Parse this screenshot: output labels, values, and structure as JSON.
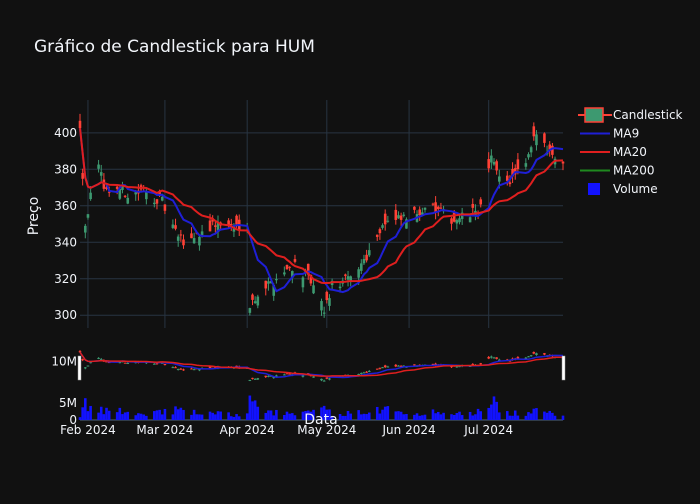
{
  "chart_data": {
    "type": "candlestick",
    "title": "Gráfico de Candlestick para HUM",
    "ylabel": "Preço",
    "xlabel": "Data",
    "ylim": [
      293,
      418
    ],
    "yticks": [
      300,
      320,
      340,
      360,
      380,
      400
    ],
    "volume_ylim": [
      0,
      8000000
    ],
    "volume_ticks": [
      {
        "value": 0,
        "label": "0"
      },
      {
        "value": 5000000,
        "label": "5M"
      }
    ],
    "navigator_tick": {
      "value": 370,
      "label": "10M"
    },
    "x_start": "2024-01-29",
    "x_end": "2024-07-29",
    "xticks": [
      {
        "date": "2024-02-01",
        "label": "Feb 2024"
      },
      {
        "date": "2024-03-01",
        "label": "Mar 2024"
      },
      {
        "date": "2024-04-01",
        "label": "Apr 2024"
      },
      {
        "date": "2024-05-01",
        "label": "May 2024"
      },
      {
        "date": "2024-06-01",
        "label": "Jun 2024"
      },
      {
        "date": "2024-07-01",
        "label": "Jul 2024"
      }
    ],
    "legend": {
      "position": "top-right",
      "items": [
        {
          "label": "Candlestick",
          "kind": "candle"
        },
        {
          "label": "MA9",
          "kind": "line",
          "color": "#1f1fd6"
        },
        {
          "label": "MA20",
          "kind": "line",
          "color": "#e01f1f"
        },
        {
          "label": "MA200",
          "kind": "line",
          "color": "#1f8a1f"
        },
        {
          "label": "Volume",
          "kind": "square",
          "color": "#1212ff"
        }
      ]
    },
    "colors": {
      "up": "#3d9970",
      "down": "#ff4136",
      "ma9": "#1f1fd6",
      "ma20": "#e01f1f",
      "ma200": "#1f8a1f",
      "volume": "#1212ff"
    },
    "anchors": [
      [
        "2024-01-29",
        405,
        1.5
      ],
      [
        "2024-01-31",
        350,
        4.5
      ],
      [
        "2024-02-02",
        365,
        3.0
      ],
      [
        "2024-02-05",
        380,
        3.0
      ],
      [
        "2024-02-08",
        368,
        2.5
      ],
      [
        "2024-02-12",
        370,
        3.5
      ],
      [
        "2024-02-16",
        366,
        2.0
      ],
      [
        "2024-02-22",
        368,
        2.0
      ],
      [
        "2024-02-29",
        362,
        2.5
      ],
      [
        "2024-03-05",
        345,
        3.0
      ],
      [
        "2024-03-08",
        340,
        2.5
      ],
      [
        "2024-03-14",
        345,
        2.0
      ],
      [
        "2024-03-20",
        350,
        2.0
      ],
      [
        "2024-03-27",
        349,
        1.5
      ],
      [
        "2024-04-01",
        350,
        1.5
      ],
      [
        "2024-04-02",
        305,
        7.0
      ],
      [
        "2024-04-05",
        312,
        3.0
      ],
      [
        "2024-04-10",
        318,
        2.5
      ],
      [
        "2024-04-15",
        324,
        2.0
      ],
      [
        "2024-04-19",
        328,
        1.5
      ],
      [
        "2024-04-25",
        318,
        2.5
      ],
      [
        "2024-04-30",
        302,
        3.0
      ],
      [
        "2024-05-03",
        316,
        2.0
      ],
      [
        "2024-05-10",
        320,
        2.0
      ],
      [
        "2024-05-17",
        335,
        2.5
      ],
      [
        "2024-05-22",
        350,
        3.5
      ],
      [
        "2024-05-28",
        352,
        2.0
      ],
      [
        "2024-06-03",
        355,
        2.0
      ],
      [
        "2024-06-07",
        360,
        2.5
      ],
      [
        "2024-06-12",
        357,
        2.0
      ],
      [
        "2024-06-18",
        352,
        1.8
      ],
      [
        "2024-06-24",
        355,
        2.0
      ],
      [
        "2024-06-28",
        360,
        2.5
      ],
      [
        "2024-07-02",
        385,
        6.0
      ],
      [
        "2024-07-08",
        372,
        2.0
      ],
      [
        "2024-07-15",
        382,
        2.0
      ],
      [
        "2024-07-19",
        400,
        2.5
      ],
      [
        "2024-07-24",
        390,
        2.0
      ],
      [
        "2024-07-29",
        384,
        1.8
      ]
    ]
  }
}
